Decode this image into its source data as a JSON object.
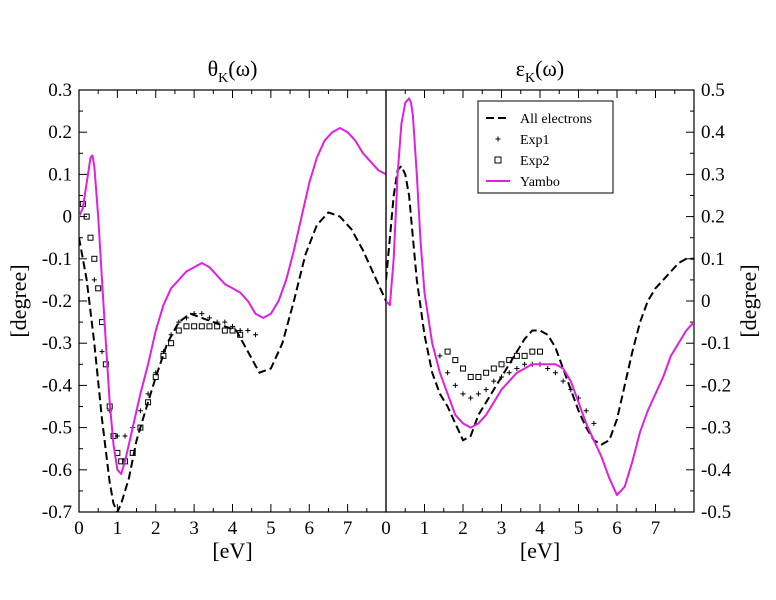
{
  "colors": {
    "yambo": "#e020e0",
    "all_electrons": "#000000",
    "exp": "#000000"
  },
  "chart_data": [
    {
      "type": "line",
      "title": "θK(ω)",
      "title_main": "θ",
      "title_sub": "K",
      "title_tail": "(ω)",
      "xlabel": "[eV]",
      "ylabel": "[degree]",
      "xlim": [
        0,
        8
      ],
      "ylim": [
        -0.7,
        0.3
      ],
      "xticks": [
        0,
        1,
        2,
        3,
        4,
        5,
        6,
        7
      ],
      "xtick_labels": [
        "0",
        "1",
        "2",
        "3",
        "4",
        "5",
        "6",
        "7"
      ],
      "yticks": [
        -0.7,
        -0.6,
        -0.5,
        -0.4,
        -0.3,
        -0.2,
        -0.1,
        0,
        0.1,
        0.2,
        0.3
      ],
      "ytick_labels": [
        "-0.7",
        "-0.6",
        "-0.5",
        "-0.4",
        "-0.3",
        "-0.2",
        "-0.1",
        "0",
        "0.1",
        "0.2",
        "0.3"
      ],
      "series": [
        {
          "name": "All electrons",
          "style": "dashed",
          "color": "#000000",
          "x": [
            0.0,
            0.2,
            0.4,
            0.6,
            0.8,
            0.9,
            1.0,
            1.1,
            1.3,
            1.5,
            1.7,
            2.0,
            2.3,
            2.6,
            2.9,
            3.2,
            3.5,
            3.8,
            4.1,
            4.4,
            4.7,
            5.0,
            5.3,
            5.6,
            5.9,
            6.2,
            6.5,
            6.8,
            7.1,
            7.4,
            7.7,
            8.0
          ],
          "y": [
            -0.05,
            -0.15,
            -0.3,
            -0.48,
            -0.63,
            -0.68,
            -0.7,
            -0.68,
            -0.62,
            -0.53,
            -0.47,
            -0.38,
            -0.3,
            -0.25,
            -0.23,
            -0.24,
            -0.25,
            -0.26,
            -0.27,
            -0.32,
            -0.37,
            -0.36,
            -0.3,
            -0.2,
            -0.09,
            -0.02,
            0.01,
            0.0,
            -0.03,
            -0.08,
            -0.14,
            -0.2
          ]
        },
        {
          "name": "Exp1",
          "style": "plus",
          "color": "#000000",
          "x": [
            0.4,
            0.6,
            0.8,
            1.0,
            1.2,
            1.4,
            1.6,
            1.8,
            2.0,
            2.2,
            2.4,
            2.6,
            2.8,
            3.0,
            3.2,
            3.4,
            3.6,
            3.8,
            4.0,
            4.2,
            4.4,
            4.6
          ],
          "y": [
            -0.15,
            -0.32,
            -0.46,
            -0.52,
            -0.52,
            -0.5,
            -0.46,
            -0.42,
            -0.37,
            -0.32,
            -0.28,
            -0.25,
            -0.24,
            -0.23,
            -0.23,
            -0.24,
            -0.25,
            -0.25,
            -0.26,
            -0.27,
            -0.27,
            -0.28
          ]
        },
        {
          "name": "Exp2",
          "style": "square",
          "color": "#000000",
          "x": [
            0.1,
            0.2,
            0.3,
            0.4,
            0.5,
            0.6,
            0.7,
            0.8,
            0.9,
            1.0,
            1.1,
            1.2,
            1.4,
            1.6,
            1.8,
            2.0,
            2.2,
            2.4,
            2.6,
            2.8,
            3.0,
            3.2,
            3.4,
            3.6,
            3.8,
            4.0,
            4.2
          ],
          "y": [
            0.03,
            0.0,
            -0.05,
            -0.1,
            -0.17,
            -0.25,
            -0.35,
            -0.45,
            -0.52,
            -0.56,
            -0.58,
            -0.58,
            -0.56,
            -0.5,
            -0.44,
            -0.38,
            -0.33,
            -0.3,
            -0.27,
            -0.26,
            -0.26,
            -0.26,
            -0.26,
            -0.26,
            -0.27,
            -0.27,
            -0.28
          ]
        },
        {
          "name": "Yambo",
          "style": "solid",
          "color": "#e020e0",
          "x": [
            0.0,
            0.1,
            0.2,
            0.3,
            0.35,
            0.4,
            0.5,
            0.6,
            0.7,
            0.8,
            0.9,
            1.0,
            1.1,
            1.2,
            1.4,
            1.6,
            1.8,
            2.0,
            2.2,
            2.4,
            2.6,
            2.8,
            3.0,
            3.2,
            3.4,
            3.6,
            3.8,
            4.0,
            4.2,
            4.4,
            4.6,
            4.8,
            5.0,
            5.2,
            5.4,
            5.6,
            5.8,
            6.0,
            6.2,
            6.4,
            6.6,
            6.8,
            7.0,
            7.2,
            7.4,
            7.6,
            7.8,
            8.0
          ],
          "y": [
            0.0,
            0.02,
            0.08,
            0.14,
            0.145,
            0.12,
            0.0,
            -0.15,
            -0.3,
            -0.44,
            -0.54,
            -0.6,
            -0.61,
            -0.58,
            -0.5,
            -0.42,
            -0.35,
            -0.27,
            -0.21,
            -0.17,
            -0.15,
            -0.13,
            -0.12,
            -0.11,
            -0.12,
            -0.14,
            -0.16,
            -0.17,
            -0.18,
            -0.2,
            -0.23,
            -0.24,
            -0.23,
            -0.2,
            -0.15,
            -0.08,
            0.0,
            0.08,
            0.14,
            0.18,
            0.2,
            0.21,
            0.2,
            0.18,
            0.15,
            0.13,
            0.11,
            0.1
          ]
        }
      ]
    },
    {
      "type": "line",
      "title": "εK(ω)",
      "title_main": "ε",
      "title_sub": "K",
      "title_tail": "(ω)",
      "xlabel": "[eV]",
      "ylabel": "[degree]",
      "xlim": [
        0,
        8
      ],
      "ylim": [
        -0.5,
        0.5
      ],
      "xticks": [
        0,
        1,
        2,
        3,
        4,
        5,
        6,
        7
      ],
      "xtick_labels": [
        "0",
        "1",
        "2",
        "3",
        "4",
        "5",
        "6",
        "7"
      ],
      "yticks": [
        -0.5,
        -0.4,
        -0.3,
        -0.2,
        -0.1,
        0,
        0.1,
        0.2,
        0.3,
        0.4,
        0.5
      ],
      "ytick_labels": [
        "-0.5",
        "-0.4",
        "-0.3",
        "-0.2",
        "-0.1",
        "0",
        "0.1",
        "0.2",
        "0.3",
        "0.4",
        "0.5"
      ],
      "legend": {
        "position": "top-right",
        "entries": [
          "All electrons",
          "Exp1",
          "Exp2",
          "Yambo"
        ]
      },
      "series": [
        {
          "name": "All electrons",
          "style": "dashed",
          "color": "#000000",
          "x": [
            0.0,
            0.1,
            0.2,
            0.3,
            0.4,
            0.5,
            0.6,
            0.7,
            0.8,
            1.0,
            1.2,
            1.4,
            1.6,
            1.8,
            2.0,
            2.2,
            2.4,
            2.6,
            2.8,
            3.0,
            3.2,
            3.4,
            3.6,
            3.8,
            4.0,
            4.2,
            4.4,
            4.6,
            4.8,
            5.0,
            5.2,
            5.4,
            5.6,
            5.8,
            6.0,
            6.2,
            6.4,
            6.6,
            6.8,
            7.0,
            7.2,
            7.4,
            7.6,
            7.8,
            8.0
          ],
          "y": [
            0.05,
            0.15,
            0.25,
            0.31,
            0.32,
            0.3,
            0.25,
            0.15,
            0.05,
            -0.08,
            -0.17,
            -0.22,
            -0.25,
            -0.29,
            -0.33,
            -0.32,
            -0.27,
            -0.24,
            -0.21,
            -0.18,
            -0.15,
            -0.12,
            -0.09,
            -0.07,
            -0.07,
            -0.08,
            -0.11,
            -0.16,
            -0.21,
            -0.26,
            -0.3,
            -0.33,
            -0.34,
            -0.33,
            -0.28,
            -0.2,
            -0.12,
            -0.05,
            0.0,
            0.03,
            0.05,
            0.07,
            0.09,
            0.1,
            0.1
          ]
        },
        {
          "name": "Exp1",
          "style": "plus",
          "color": "#000000",
          "x": [
            1.4,
            1.6,
            1.8,
            2.0,
            2.2,
            2.4,
            2.6,
            2.8,
            3.0,
            3.2,
            3.4,
            3.6,
            3.8,
            4.0,
            4.2,
            4.4,
            4.6,
            4.8,
            5.0,
            5.2,
            5.4
          ],
          "y": [
            -0.13,
            -0.17,
            -0.2,
            -0.22,
            -0.23,
            -0.22,
            -0.21,
            -0.19,
            -0.18,
            -0.17,
            -0.16,
            -0.15,
            -0.15,
            -0.15,
            -0.16,
            -0.17,
            -0.19,
            -0.21,
            -0.23,
            -0.26,
            -0.29
          ]
        },
        {
          "name": "Exp2",
          "style": "square",
          "color": "#000000",
          "x": [
            1.6,
            1.8,
            2.0,
            2.2,
            2.4,
            2.6,
            2.8,
            3.0,
            3.2,
            3.4,
            3.6,
            3.8,
            4.0
          ],
          "y": [
            -0.12,
            -0.14,
            -0.16,
            -0.18,
            -0.18,
            -0.17,
            -0.16,
            -0.15,
            -0.14,
            -0.13,
            -0.13,
            -0.12,
            -0.12
          ]
        },
        {
          "name": "Yambo",
          "style": "solid",
          "color": "#e020e0",
          "x": [
            0.0,
            0.1,
            0.2,
            0.3,
            0.4,
            0.5,
            0.6,
            0.65,
            0.7,
            0.8,
            0.9,
            1.0,
            1.2,
            1.4,
            1.6,
            1.8,
            2.0,
            2.2,
            2.4,
            2.6,
            2.8,
            3.0,
            3.2,
            3.4,
            3.6,
            3.8,
            4.0,
            4.2,
            4.4,
            4.6,
            4.8,
            5.0,
            5.2,
            5.4,
            5.6,
            5.8,
            6.0,
            6.2,
            6.4,
            6.6,
            6.8,
            7.0,
            7.2,
            7.4,
            7.6,
            7.8,
            8.0
          ],
          "y": [
            0.0,
            -0.01,
            0.1,
            0.3,
            0.42,
            0.47,
            0.48,
            0.47,
            0.44,
            0.3,
            0.14,
            0.02,
            -0.1,
            -0.17,
            -0.22,
            -0.27,
            -0.29,
            -0.3,
            -0.29,
            -0.27,
            -0.24,
            -0.21,
            -0.19,
            -0.17,
            -0.16,
            -0.15,
            -0.15,
            -0.15,
            -0.15,
            -0.16,
            -0.19,
            -0.24,
            -0.29,
            -0.33,
            -0.37,
            -0.42,
            -0.46,
            -0.44,
            -0.38,
            -0.31,
            -0.26,
            -0.22,
            -0.18,
            -0.13,
            -0.1,
            -0.07,
            -0.05
          ]
        }
      ]
    }
  ]
}
